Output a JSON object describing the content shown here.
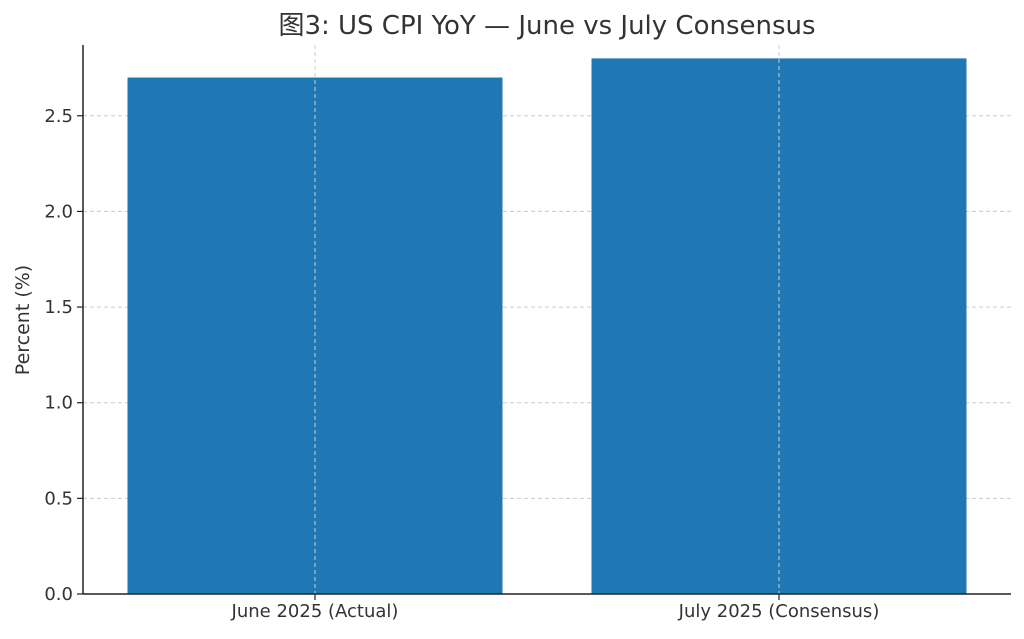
{
  "chart_data": {
    "type": "bar",
    "title": "图3: US CPI YoY — June vs July Consensus",
    "xlabel": "",
    "ylabel": "Percent (%)",
    "categories": [
      "June 2025 (Actual)",
      "July 2025 (Consensus)"
    ],
    "values": [
      2.7,
      2.8
    ],
    "ylim": [
      0,
      2.87
    ],
    "yticks": [
      0.0,
      0.5,
      1.0,
      1.5,
      2.0,
      2.5
    ],
    "ytick_labels": [
      "0.0",
      "0.5",
      "1.0",
      "1.5",
      "2.0",
      "2.5"
    ],
    "grid": true,
    "bar_color": "#1f77b4"
  }
}
